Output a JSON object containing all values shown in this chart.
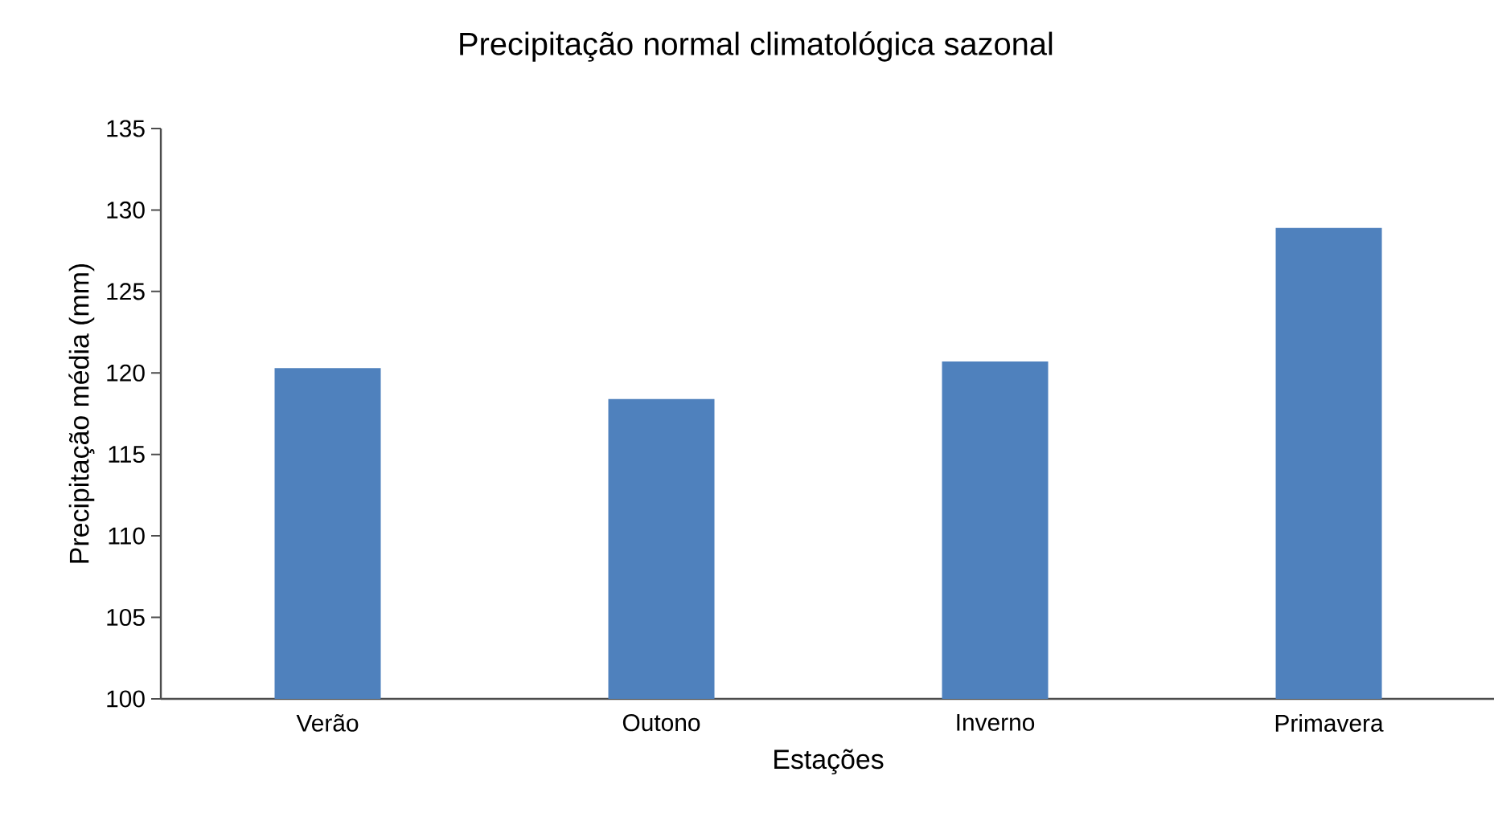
{
  "chart_data": {
    "type": "bar",
    "title": "Precipitação normal climatológica sazonal",
    "xlabel": "Estações",
    "ylabel": "Precipitação média (mm)",
    "categories": [
      "Verão",
      "Outono",
      "Inverno",
      "Primavera"
    ],
    "values": [
      120.3,
      118.4,
      120.7,
      128.9
    ],
    "color": "#4f81bd",
    "ylim": [
      100,
      135
    ],
    "yticks": [
      100,
      105,
      110,
      115,
      120,
      125,
      130,
      135
    ],
    "grid": false
  }
}
